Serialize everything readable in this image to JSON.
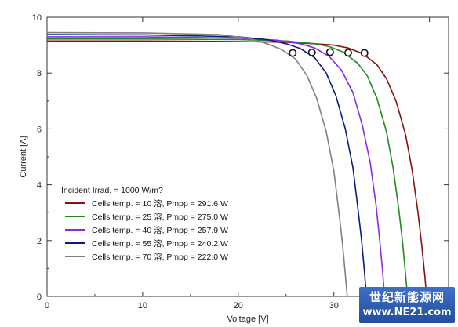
{
  "chart_data": {
    "type": "line",
    "xlabel": "Voltage [V]",
    "ylabel": "Current [A]",
    "xlim": [
      0,
      42
    ],
    "ylim": [
      0,
      10
    ],
    "x_ticks": [
      "0",
      "10",
      "20",
      "30",
      "40"
    ],
    "y_ticks": [
      "0",
      "2",
      "4",
      "6",
      "8",
      "10"
    ],
    "grid": false,
    "legend_placement": "bottom-left",
    "legend_title": "Incident Irrad. = 1000 W/m?",
    "series": [
      {
        "name": "Cells temp. = 10 °C,  Pmpp = 291.6 W",
        "legend_text": "Cells temp. = 10 溶,  Pmpp = 291.6 W",
        "color": "#8b1010",
        "points": [
          [
            0,
            9.15
          ],
          [
            10,
            9.15
          ],
          [
            20,
            9.13
          ],
          [
            25,
            9.1
          ],
          [
            28,
            9.05
          ],
          [
            30,
            9.0
          ],
          [
            31.5,
            8.9
          ],
          [
            33,
            8.7
          ],
          [
            34.5,
            8.3
          ],
          [
            35.5,
            7.8
          ],
          [
            36.5,
            7.0
          ],
          [
            37.5,
            5.8
          ],
          [
            38.2,
            4.5
          ],
          [
            38.8,
            3.0
          ],
          [
            39.2,
            1.8
          ],
          [
            39.5,
            0.8
          ],
          [
            39.7,
            0
          ]
        ],
        "mpp": [
          33.2,
          8.72
        ]
      },
      {
        "name": "Cells temp. = 25 °C,  Pmpp = 275.0 W",
        "legend_text": "Cells temp. = 25 溶,  Pmpp = 275.0 W",
        "color": "#1f8a1f",
        "points": [
          [
            0,
            9.22
          ],
          [
            10,
            9.22
          ],
          [
            20,
            9.2
          ],
          [
            25,
            9.15
          ],
          [
            28,
            9.05
          ],
          [
            29.5,
            8.95
          ],
          [
            31,
            8.75
          ],
          [
            32.5,
            8.35
          ],
          [
            33.5,
            7.9
          ],
          [
            34.5,
            7.1
          ],
          [
            35.5,
            5.9
          ],
          [
            36.2,
            4.6
          ],
          [
            36.8,
            3.1
          ],
          [
            37.2,
            1.9
          ],
          [
            37.5,
            0.8
          ],
          [
            37.7,
            0
          ]
        ],
        "mpp": [
          31.5,
          8.73
        ]
      },
      {
        "name": "Cells temp. = 40 °C,  Pmpp = 257.9 W",
        "legend_text": "Cells temp. = 40 溶,  Pmpp = 257.9 W",
        "color": "#8a2be2",
        "points": [
          [
            0,
            9.3
          ],
          [
            10,
            9.3
          ],
          [
            20,
            9.25
          ],
          [
            24,
            9.18
          ],
          [
            26.5,
            9.05
          ],
          [
            28,
            8.9
          ],
          [
            29.5,
            8.6
          ],
          [
            30.8,
            8.1
          ],
          [
            32,
            7.3
          ],
          [
            33,
            6.1
          ],
          [
            33.8,
            4.8
          ],
          [
            34.4,
            3.3
          ],
          [
            34.8,
            2.0
          ],
          [
            35.1,
            0.9
          ],
          [
            35.3,
            0
          ]
        ],
        "mpp": [
          29.6,
          8.75
        ]
      },
      {
        "name": "Cells temp. = 55 °C,  Pmpp = 240.2 W",
        "legend_text": "Cells temp. = 55 溶,  Pmpp = 240.2 W",
        "color": "#0a1a80",
        "points": [
          [
            0,
            9.38
          ],
          [
            10,
            9.37
          ],
          [
            20,
            9.3
          ],
          [
            23,
            9.2
          ],
          [
            25,
            9.05
          ],
          [
            26.5,
            8.88
          ],
          [
            28,
            8.55
          ],
          [
            29.2,
            8.0
          ],
          [
            30.2,
            7.2
          ],
          [
            31.2,
            6.0
          ],
          [
            32,
            4.6
          ],
          [
            32.5,
            3.2
          ],
          [
            32.9,
            2.0
          ],
          [
            33.2,
            0.9
          ],
          [
            33.4,
            0
          ]
        ],
        "mpp": [
          27.7,
          8.74
        ]
      },
      {
        "name": "Cells temp. = 70 °C,  Pmpp = 222.0 W",
        "legend_text": "Cells temp. = 70 溶,  Pmpp = 222.0 W",
        "color": "#808080",
        "points": [
          [
            0,
            9.45
          ],
          [
            10,
            9.44
          ],
          [
            18,
            9.38
          ],
          [
            21,
            9.25
          ],
          [
            23,
            9.05
          ],
          [
            24.5,
            8.85
          ],
          [
            26,
            8.5
          ],
          [
            27.2,
            7.9
          ],
          [
            28.2,
            7.1
          ],
          [
            29.2,
            5.9
          ],
          [
            30,
            4.5
          ],
          [
            30.5,
            3.1
          ],
          [
            30.9,
            1.9
          ],
          [
            31.2,
            0.8
          ],
          [
            31.4,
            0
          ]
        ],
        "mpp": [
          25.7,
          8.72
        ]
      }
    ]
  },
  "watermark": {
    "line1": "世纪新能源网",
    "line2": "www.NE21.com"
  }
}
